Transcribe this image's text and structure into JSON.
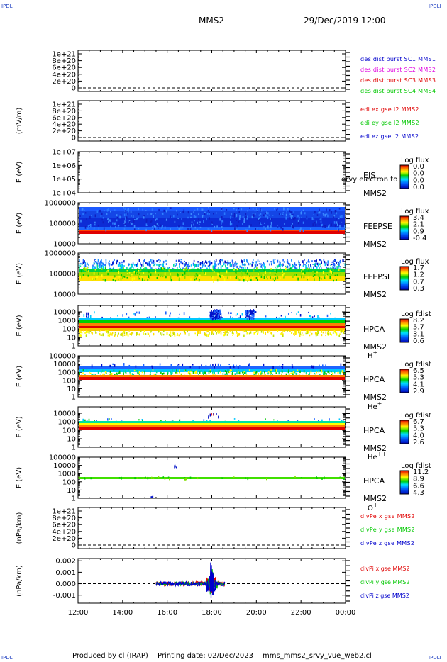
{
  "corner_marks": {
    "tl": "IPDLI",
    "tr": "IPDLI",
    "bl": "IPDLI",
    "br": "IPDLI"
  },
  "header": {
    "spacecraft": "MMS2",
    "datetime": "29/Dec/2019 12:00"
  },
  "footer": {
    "produced_by": "Produced by cl (IRAP)",
    "printing_date": "Printing date: 02/Dec/2023",
    "script": "mms_mms2_srvy_vue_web2.cl"
  },
  "colors": {
    "red": "#e00000",
    "magenta": "#e000e0",
    "green": "#00c800",
    "blue": "#0000cc",
    "spec_dark_blue": "#0010c8",
    "spec_blue": "#1e64ff"
  },
  "chart_data": [
    {
      "type": "line",
      "id": "des_dist",
      "ylabel": "",
      "yticks": [
        "1e+21",
        "8e+20",
        "6e+20",
        "4e+20",
        "2e+20",
        "0"
      ],
      "legend": [
        {
          "label": "des dist burst SC1 MMS1",
          "color": "#0000cc"
        },
        {
          "label": "des dist burst SC2 MMS2",
          "color": "#e000e0"
        },
        {
          "label": "des dist burst SC3 MMS3",
          "color": "#e00000"
        },
        {
          "label": "des dist burst SC4 MMS4",
          "color": "#00c800"
        }
      ]
    },
    {
      "type": "line",
      "id": "edi_e",
      "ylabel": "(mV/m)",
      "yticks": [
        "1e+21",
        "8e+20",
        "6e+20",
        "4e+20",
        "2e+20",
        "0"
      ],
      "legend": [
        {
          "label": "edi ex gse l2 MMS2",
          "color": "#e00000"
        },
        {
          "label": "edi ey gse l2 MMS2",
          "color": "#00c800"
        },
        {
          "label": "edi ez gse l2 MMS2",
          "color": "#0000cc"
        }
      ]
    },
    {
      "type": "heatmap",
      "id": "eis",
      "ylabel": "E (eV)",
      "yticks": [
        "1e+07",
        "1e+06",
        "1e+05",
        "1e+04"
      ],
      "label_lines": [
        "EIS",
        "MMS2"
      ],
      "overlay_text": "ervy electron to",
      "colorbar_title": "Log flux",
      "colorbar_ticks": [
        "0.0",
        "0.0",
        "0.0",
        "0.0"
      ]
    },
    {
      "type": "heatmap",
      "id": "feeps_e",
      "ylabel": "E (eV)",
      "yticks": [
        "1000000",
        "100000",
        "10000"
      ],
      "label_lines": [
        "FEEPSE",
        "MMS2"
      ],
      "colorbar_title": "Log flux",
      "colorbar_ticks": [
        "3.4",
        "2.1",
        "0.9",
        "-0.4"
      ]
    },
    {
      "type": "heatmap",
      "id": "feeps_i",
      "ylabel": "E (eV)",
      "yticks": [
        "1000000",
        "100000",
        "10000"
      ],
      "label_lines": [
        "FEEPSI",
        "MMS2"
      ],
      "colorbar_title": "Log flux",
      "colorbar_ticks": [
        "1.7",
        "1.2",
        "0.7",
        "0.3"
      ]
    },
    {
      "type": "heatmap",
      "id": "hpca_h",
      "ylabel": "E (eV)",
      "yticks": [
        "10000",
        "1000",
        "100",
        "10",
        "1"
      ],
      "label_lines": [
        "HPCA",
        "MMS2"
      ],
      "species": "H",
      "species_charge": "+",
      "colorbar_title": "Log fdist",
      "colorbar_ticks": [
        "8.2",
        "5.7",
        "3.1",
        "0.6"
      ]
    },
    {
      "type": "heatmap",
      "id": "hpca_he1",
      "ylabel": "E (eV)",
      "yticks": [
        "100000",
        "10000",
        "1000",
        "100",
        "10",
        "1"
      ],
      "label_lines": [
        "HPCA",
        "MMS2"
      ],
      "species": "He",
      "species_charge": "+",
      "colorbar_title": "Log fdist",
      "colorbar_ticks": [
        "6.5",
        "5.3",
        "4.1",
        "2.9"
      ]
    },
    {
      "type": "heatmap",
      "id": "hpca_he2",
      "ylabel": "E (eV)",
      "yticks": [
        "10000",
        "1000",
        "100",
        "10",
        "1"
      ],
      "label_lines": [
        "HPCA",
        "MMS2"
      ],
      "species": "He",
      "species_charge": "++",
      "colorbar_title": "Log fdist",
      "colorbar_ticks": [
        "6.7",
        "5.3",
        "4.0",
        "2.6"
      ]
    },
    {
      "type": "heatmap",
      "id": "hpca_o",
      "ylabel": "E (eV)",
      "yticks": [
        "100000",
        "10000",
        "1000",
        "100",
        "10",
        "1"
      ],
      "label_lines": [
        "HPCA",
        "MMS2"
      ],
      "species": "O",
      "species_charge": "+",
      "colorbar_title": "Log fdist",
      "colorbar_ticks": [
        "11.2",
        "8.9",
        "6.6",
        "4.3"
      ]
    },
    {
      "type": "line",
      "id": "divpe",
      "ylabel": "(nPa/km)",
      "yticks": [
        "1e+21",
        "8e+20",
        "6e+20",
        "4e+20",
        "2e+20",
        "0"
      ],
      "legend": [
        {
          "label": "divPe x gse MMS2",
          "color": "#e00000"
        },
        {
          "label": "divPe y gse MMS2",
          "color": "#00c800"
        },
        {
          "label": "divPe z gse MMS2",
          "color": "#0000cc"
        }
      ]
    },
    {
      "type": "line",
      "id": "divpi",
      "ylabel": "(nPa/km)",
      "yticks": [
        "0.002",
        "0.001",
        "0.000",
        "-0.001"
      ],
      "ylim": [
        -0.0017,
        0.0022
      ],
      "legend": [
        {
          "label": "divPi x gse MMS2",
          "color": "#e00000"
        },
        {
          "label": "divPi y gse MMS2",
          "color": "#00c800"
        },
        {
          "label": "divPi z gse MMS2",
          "color": "#0000cc"
        }
      ],
      "data_window": [
        "15:30",
        "18:35"
      ],
      "spike": {
        "time": "18:00",
        "max": 0.0019,
        "min": -0.0014
      }
    }
  ],
  "time_axis": {
    "labels": [
      "12:00",
      "14:00",
      "16:00",
      "18:00",
      "20:00",
      "22:00",
      "00:00"
    ],
    "range_hours": [
      12,
      24
    ]
  }
}
